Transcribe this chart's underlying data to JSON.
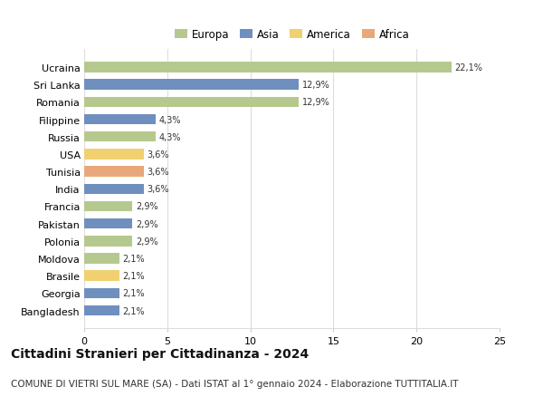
{
  "countries": [
    "Ucraina",
    "Sri Lanka",
    "Romania",
    "Filippine",
    "Russia",
    "USA",
    "Tunisia",
    "India",
    "Francia",
    "Pakistan",
    "Polonia",
    "Moldova",
    "Brasile",
    "Georgia",
    "Bangladesh"
  ],
  "values": [
    22.1,
    12.9,
    12.9,
    4.3,
    4.3,
    3.6,
    3.6,
    3.6,
    2.9,
    2.9,
    2.9,
    2.1,
    2.1,
    2.1,
    2.1
  ],
  "labels": [
    "22,1%",
    "12,9%",
    "12,9%",
    "4,3%",
    "4,3%",
    "3,6%",
    "3,6%",
    "3,6%",
    "2,9%",
    "2,9%",
    "2,9%",
    "2,1%",
    "2,1%",
    "2,1%",
    "2,1%"
  ],
  "continents": [
    "Europa",
    "Asia",
    "Europa",
    "Asia",
    "Europa",
    "America",
    "Africa",
    "Asia",
    "Europa",
    "Asia",
    "Europa",
    "Europa",
    "America",
    "Asia",
    "Asia"
  ],
  "continent_colors": {
    "Europa": "#b5c98e",
    "Asia": "#6f8fbf",
    "America": "#f0d070",
    "Africa": "#e8a87c"
  },
  "legend_order": [
    "Europa",
    "Asia",
    "America",
    "Africa"
  ],
  "xlim": [
    0,
    25
  ],
  "xticks": [
    0,
    5,
    10,
    15,
    20,
    25
  ],
  "title": "Cittadini Stranieri per Cittadinanza - 2024",
  "subtitle": "COMUNE DI VIETRI SUL MARE (SA) - Dati ISTAT al 1° gennaio 2024 - Elaborazione TUTTITALIA.IT",
  "title_fontsize": 10,
  "subtitle_fontsize": 7.5,
  "background_color": "#ffffff",
  "grid_color": "#dddddd",
  "bar_height": 0.6
}
